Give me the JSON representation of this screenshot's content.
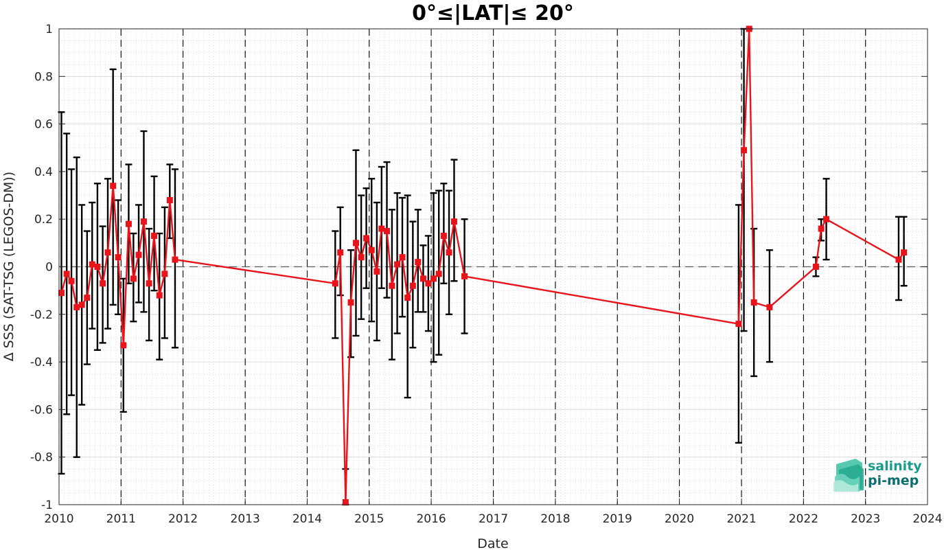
{
  "chart_data": {
    "type": "line",
    "title": "0°≤|LAT|≤ 20°",
    "xlabel": "Date",
    "ylabel": "Δ SSS (SAT-TSG (LEGOS-DM))",
    "xlim": [
      "2010-01-01",
      "2024-01-01"
    ],
    "ylim": [
      -1,
      1
    ],
    "x_ticks": [
      "2010",
      "2011",
      "2012",
      "2013",
      "2014",
      "2015",
      "2016",
      "2017",
      "2018",
      "2019",
      "2020",
      "2021",
      "2022",
      "2023",
      "2024"
    ],
    "y_ticks": [
      "-1",
      "-0.8",
      "-0.6",
      "-0.4",
      "-0.2",
      "0",
      "0.2",
      "0.4",
      "0.6",
      "0.8",
      "1"
    ],
    "grid": true,
    "minor_grid": true,
    "year_boundaries": "dashed vertical lines",
    "zero_line": "dashed horizontal line",
    "series": [
      {
        "color": "#e8141b",
        "marker": "square",
        "errorbar_color": "#000000",
        "points": [
          {
            "x": "2010-01-15",
            "y": -0.11,
            "lo": -0.87,
            "hi": 0.65
          },
          {
            "x": "2010-02-15",
            "y": -0.03,
            "lo": -0.62,
            "hi": 0.56
          },
          {
            "x": "2010-03-15",
            "y": -0.06,
            "lo": -0.54,
            "hi": 0.41
          },
          {
            "x": "2010-04-15",
            "y": -0.17,
            "lo": -0.8,
            "hi": 0.46
          },
          {
            "x": "2010-05-15",
            "y": -0.16,
            "lo": -0.58,
            "hi": 0.26
          },
          {
            "x": "2010-06-15",
            "y": -0.13,
            "lo": -0.41,
            "hi": 0.15
          },
          {
            "x": "2010-07-15",
            "y": 0.01,
            "lo": -0.26,
            "hi": 0.27
          },
          {
            "x": "2010-08-15",
            "y": 0.0,
            "lo": -0.35,
            "hi": 0.35
          },
          {
            "x": "2010-09-15",
            "y": -0.07,
            "lo": -0.32,
            "hi": 0.17
          },
          {
            "x": "2010-10-15",
            "y": 0.06,
            "lo": -0.26,
            "hi": 0.37
          },
          {
            "x": "2010-11-15",
            "y": 0.34,
            "lo": -0.16,
            "hi": 0.83
          },
          {
            "x": "2010-12-15",
            "y": 0.04,
            "lo": -0.2,
            "hi": 0.28
          },
          {
            "x": "2011-01-15",
            "y": -0.33,
            "lo": -0.61,
            "hi": -0.05
          },
          {
            "x": "2011-02-15",
            "y": 0.18,
            "lo": -0.07,
            "hi": 0.43
          },
          {
            "x": "2011-03-15",
            "y": -0.05,
            "lo": -0.23,
            "hi": 0.14
          },
          {
            "x": "2011-04-15",
            "y": 0.05,
            "lo": -0.15,
            "hi": 0.26
          },
          {
            "x": "2011-05-15",
            "y": 0.19,
            "lo": -0.19,
            "hi": 0.57
          },
          {
            "x": "2011-06-15",
            "y": -0.07,
            "lo": -0.31,
            "hi": 0.16
          },
          {
            "x": "2011-07-15",
            "y": 0.13,
            "lo": -0.1,
            "hi": 0.38
          },
          {
            "x": "2011-08-15",
            "y": -0.12,
            "lo": -0.39,
            "hi": 0.14
          },
          {
            "x": "2011-09-15",
            "y": -0.03,
            "lo": -0.3,
            "hi": 0.25
          },
          {
            "x": "2011-10-15",
            "y": 0.28,
            "lo": 0.12,
            "hi": 0.43
          },
          {
            "x": "2011-11-15",
            "y": 0.03,
            "lo": -0.34,
            "hi": 0.41
          },
          {
            "x": "2014-06-15",
            "y": -0.07,
            "lo": -0.3,
            "hi": 0.15
          },
          {
            "x": "2014-07-15",
            "y": 0.06,
            "lo": -0.12,
            "hi": 0.25
          },
          {
            "x": "2014-08-15",
            "y": -0.99,
            "lo": -1.0,
            "hi": -0.85
          },
          {
            "x": "2014-09-15",
            "y": -0.15,
            "lo": -0.38,
            "hi": 0.07
          },
          {
            "x": "2014-10-15",
            "y": 0.1,
            "lo": -0.29,
            "hi": 0.49
          },
          {
            "x": "2014-11-15",
            "y": 0.04,
            "lo": -0.22,
            "hi": 0.3
          },
          {
            "x": "2014-12-15",
            "y": 0.12,
            "lo": -0.09,
            "hi": 0.33
          },
          {
            "x": "2015-01-15",
            "y": 0.07,
            "lo": -0.23,
            "hi": 0.37
          },
          {
            "x": "2015-02-15",
            "y": -0.02,
            "lo": -0.31,
            "hi": 0.27
          },
          {
            "x": "2015-03-15",
            "y": 0.16,
            "lo": -0.09,
            "hi": 0.42
          },
          {
            "x": "2015-04-15",
            "y": 0.15,
            "lo": -0.13,
            "hi": 0.44
          },
          {
            "x": "2015-05-15",
            "y": -0.08,
            "lo": -0.39,
            "hi": 0.24
          },
          {
            "x": "2015-06-15",
            "y": 0.01,
            "lo": -0.28,
            "hi": 0.31
          },
          {
            "x": "2015-07-15",
            "y": 0.04,
            "lo": -0.21,
            "hi": 0.29
          },
          {
            "x": "2015-08-15",
            "y": -0.13,
            "lo": -0.55,
            "hi": 0.3
          },
          {
            "x": "2015-09-15",
            "y": -0.08,
            "lo": -0.34,
            "hi": 0.19
          },
          {
            "x": "2015-10-15",
            "y": 0.02,
            "lo": -0.19,
            "hi": 0.24
          },
          {
            "x": "2015-11-15",
            "y": -0.05,
            "lo": -0.19,
            "hi": 0.09
          },
          {
            "x": "2015-12-15",
            "y": -0.07,
            "lo": -0.27,
            "hi": 0.13
          },
          {
            "x": "2016-01-15",
            "y": -0.05,
            "lo": -0.4,
            "hi": 0.31
          },
          {
            "x": "2016-02-15",
            "y": -0.03,
            "lo": -0.37,
            "hi": 0.32
          },
          {
            "x": "2016-03-15",
            "y": 0.13,
            "lo": -0.07,
            "hi": 0.35
          },
          {
            "x": "2016-04-15",
            "y": 0.06,
            "lo": -0.2,
            "hi": 0.32
          },
          {
            "x": "2016-05-15",
            "y": 0.19,
            "lo": -0.06,
            "hi": 0.45
          },
          {
            "x": "2016-07-15",
            "y": -0.04,
            "lo": -0.28,
            "hi": 0.2
          },
          {
            "x": "2020-12-15",
            "y": -0.24,
            "lo": -0.74,
            "hi": 0.26
          },
          {
            "x": "2021-01-15",
            "y": 0.49,
            "lo": -0.27,
            "hi": 1.0
          },
          {
            "x": "2021-02-15",
            "y": 1.0,
            "lo": 1.0,
            "hi": 1.0
          },
          {
            "x": "2021-03-15",
            "y": -0.15,
            "lo": -0.46,
            "hi": 0.16
          },
          {
            "x": "2021-06-15",
            "y": -0.17,
            "lo": -0.4,
            "hi": 0.07
          },
          {
            "x": "2022-03-15",
            "y": 0.0,
            "lo": -0.04,
            "hi": 0.04
          },
          {
            "x": "2022-04-15",
            "y": 0.16,
            "lo": 0.11,
            "hi": 0.2
          },
          {
            "x": "2022-05-15",
            "y": 0.2,
            "lo": 0.03,
            "hi": 0.37
          },
          {
            "x": "2023-07-15",
            "y": 0.03,
            "lo": -0.14,
            "hi": 0.21
          },
          {
            "x": "2023-08-15",
            "y": 0.06,
            "lo": -0.08,
            "hi": 0.21
          }
        ]
      }
    ]
  },
  "logo": {
    "line1": "salinity",
    "line2": "pi-mep",
    "color_text": "#1a9c8c",
    "color_text2": "#0d6e72"
  }
}
